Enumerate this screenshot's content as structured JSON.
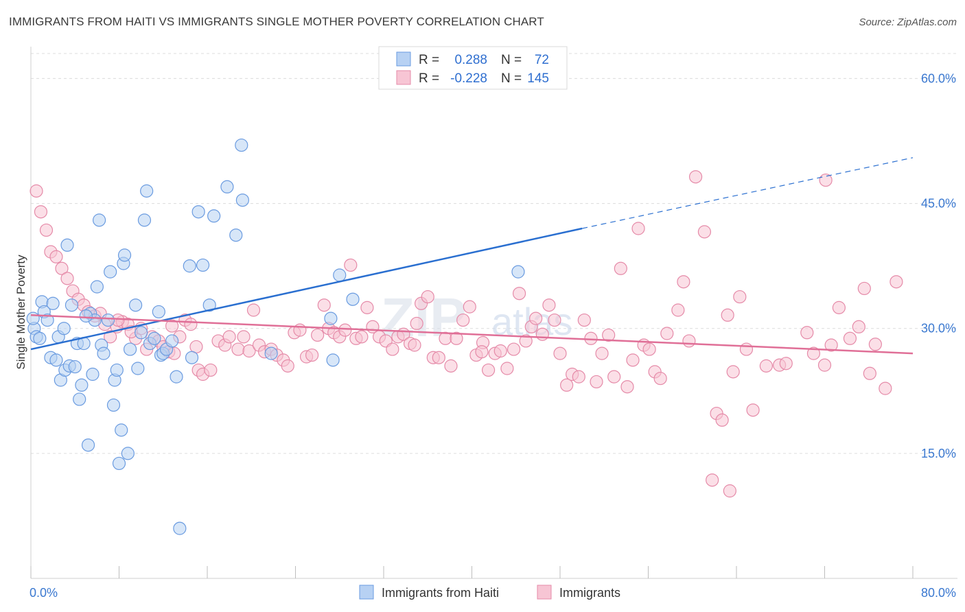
{
  "title": "IMMIGRANTS FROM HAITI VS IMMIGRANTS SINGLE MOTHER POVERTY CORRELATION CHART",
  "source": "Source: ZipAtlas.com",
  "watermark": {
    "zip": "ZIP",
    "atlas": "atlas"
  },
  "colors": {
    "blue_fill": "#b7d1f3",
    "blue_stroke": "#6a9be0",
    "blue_line": "#2a6fd0",
    "pink_fill": "#f7c5d4",
    "pink_stroke": "#e58aa8",
    "pink_line": "#e06f97",
    "grid": "#dcdcdc",
    "axis_text": "#3a78d0"
  },
  "legend": {
    "rows": [
      {
        "r_label": "R =",
        "r_value": "0.288",
        "n_label": "N =",
        "n_value": "72"
      },
      {
        "r_label": "R =",
        "r_value": "-0.228",
        "n_label": "N =",
        "n_value": "145"
      }
    ]
  },
  "chart_data": {
    "type": "scatter",
    "title": "IMMIGRANTS FROM HAITI VS IMMIGRANTS SINGLE MOTHER POVERTY CORRELATION CHART",
    "xlabel": "",
    "ylabel": "Single Mother Poverty",
    "xlim": [
      0,
      80
    ],
    "ylim": [
      0,
      63
    ],
    "x_ticks_labeled": [
      "0.0%",
      "80.0%"
    ],
    "x_tick_positions": [
      0,
      8,
      16,
      24,
      32,
      40,
      48,
      56,
      64,
      72,
      80
    ],
    "y_ticks": [
      15,
      30,
      45,
      60
    ],
    "y_tick_labels": [
      "15.0%",
      "30.0%",
      "45.0%",
      "60.0%"
    ],
    "grid": "horizontal dashed",
    "legend_placement": "top-center and bottom",
    "series": [
      {
        "name": "Immigrants from Haiti",
        "R": 0.288,
        "N": 72,
        "trend": {
          "x0": 0,
          "y0": 27.5,
          "x1": 50,
          "y1": 42.0,
          "dashed_to_x": 80,
          "dashed_to_y": 50.5
        },
        "points": [
          [
            0.3,
            30.0
          ],
          [
            0.5,
            29.0
          ],
          [
            0.8,
            28.8
          ],
          [
            1.0,
            33.2
          ],
          [
            1.2,
            32.0
          ],
          [
            1.5,
            31.0
          ],
          [
            1.8,
            26.5
          ],
          [
            2.0,
            33.0
          ],
          [
            2.3,
            26.2
          ],
          [
            2.5,
            29.0
          ],
          [
            2.7,
            23.8
          ],
          [
            3.0,
            30.0
          ],
          [
            3.1,
            25.0
          ],
          [
            3.3,
            40.0
          ],
          [
            3.5,
            25.5
          ],
          [
            3.7,
            32.8
          ],
          [
            4.0,
            25.4
          ],
          [
            4.2,
            28.2
          ],
          [
            4.4,
            21.5
          ],
          [
            4.6,
            23.2
          ],
          [
            4.8,
            28.2
          ],
          [
            5.2,
            16.0
          ],
          [
            5.4,
            31.8
          ],
          [
            5.6,
            24.5
          ],
          [
            5.8,
            31.0
          ],
          [
            6.0,
            35.0
          ],
          [
            6.2,
            43.0
          ],
          [
            6.4,
            28.0
          ],
          [
            6.6,
            27.0
          ],
          [
            7.0,
            31.0
          ],
          [
            7.2,
            36.8
          ],
          [
            7.5,
            20.8
          ],
          [
            7.6,
            23.8
          ],
          [
            7.8,
            25.0
          ],
          [
            8.0,
            13.8
          ],
          [
            8.2,
            17.8
          ],
          [
            8.4,
            37.8
          ],
          [
            8.5,
            38.8
          ],
          [
            8.8,
            15.0
          ],
          [
            9.0,
            27.5
          ],
          [
            9.5,
            32.8
          ],
          [
            9.7,
            25.2
          ],
          [
            10.0,
            29.5
          ],
          [
            10.3,
            43.0
          ],
          [
            10.5,
            46.5
          ],
          [
            10.8,
            28.2
          ],
          [
            11.2,
            28.8
          ],
          [
            11.6,
            32.0
          ],
          [
            11.8,
            26.8
          ],
          [
            12.0,
            27.0
          ],
          [
            12.3,
            27.5
          ],
          [
            12.8,
            28.5
          ],
          [
            13.2,
            24.2
          ],
          [
            13.5,
            6.0
          ],
          [
            14.4,
            37.5
          ],
          [
            14.6,
            26.5
          ],
          [
            15.2,
            44.0
          ],
          [
            15.6,
            37.6
          ],
          [
            16.2,
            32.8
          ],
          [
            16.6,
            43.5
          ],
          [
            17.8,
            47.0
          ],
          [
            18.6,
            41.2
          ],
          [
            19.1,
            52.0
          ],
          [
            19.2,
            45.4
          ],
          [
            21.8,
            27.0
          ],
          [
            27.2,
            31.2
          ],
          [
            27.4,
            26.2
          ],
          [
            28.0,
            36.4
          ],
          [
            29.2,
            33.5
          ],
          [
            44.2,
            36.8
          ],
          [
            0.2,
            31.2
          ],
          [
            5.0,
            31.5
          ]
        ]
      },
      {
        "name": "Immigrants",
        "R": -0.228,
        "N": 145,
        "trend": {
          "x0": 0,
          "y0": 31.6,
          "x1": 80,
          "y1": 27.0
        },
        "points": [
          [
            0.5,
            46.5
          ],
          [
            0.9,
            44.0
          ],
          [
            1.4,
            41.8
          ],
          [
            1.8,
            39.2
          ],
          [
            2.3,
            38.6
          ],
          [
            2.8,
            37.2
          ],
          [
            3.3,
            36.0
          ],
          [
            3.8,
            34.5
          ],
          [
            4.3,
            33.5
          ],
          [
            4.8,
            32.8
          ],
          [
            5.2,
            32.0
          ],
          [
            5.8,
            31.5
          ],
          [
            6.3,
            31.8
          ],
          [
            6.7,
            30.5
          ],
          [
            7.2,
            29.0
          ],
          [
            7.8,
            30.2
          ],
          [
            8.3,
            30.8
          ],
          [
            8.8,
            30.5
          ],
          [
            9.5,
            28.8
          ],
          [
            10.0,
            30.0
          ],
          [
            10.5,
            27.5
          ],
          [
            11.0,
            29.0
          ],
          [
            11.6,
            28.5
          ],
          [
            12.0,
            27.8
          ],
          [
            12.5,
            27.2
          ],
          [
            13.0,
            27.0
          ],
          [
            13.5,
            29.0
          ],
          [
            14.0,
            31.0
          ],
          [
            14.5,
            30.5
          ],
          [
            15.0,
            27.8
          ],
          [
            15.2,
            25.0
          ],
          [
            15.6,
            24.5
          ],
          [
            16.3,
            25.0
          ],
          [
            17.0,
            28.5
          ],
          [
            17.6,
            28.0
          ],
          [
            18.0,
            29.0
          ],
          [
            18.8,
            27.5
          ],
          [
            19.3,
            29.0
          ],
          [
            19.8,
            27.3
          ],
          [
            20.2,
            32.2
          ],
          [
            20.7,
            28.0
          ],
          [
            21.2,
            27.2
          ],
          [
            21.8,
            27.5
          ],
          [
            22.3,
            26.8
          ],
          [
            22.9,
            26.2
          ],
          [
            23.3,
            25.5
          ],
          [
            23.9,
            29.5
          ],
          [
            24.4,
            29.8
          ],
          [
            25.0,
            26.6
          ],
          [
            25.5,
            26.8
          ],
          [
            26.0,
            29.2
          ],
          [
            26.6,
            32.8
          ],
          [
            27.0,
            30.0
          ],
          [
            27.5,
            29.5
          ],
          [
            28.0,
            29.0
          ],
          [
            28.5,
            29.8
          ],
          [
            29.0,
            37.6
          ],
          [
            29.5,
            28.8
          ],
          [
            30.0,
            29.0
          ],
          [
            30.5,
            32.5
          ],
          [
            31.0,
            30.2
          ],
          [
            31.6,
            29.0
          ],
          [
            32.2,
            28.5
          ],
          [
            32.8,
            27.5
          ],
          [
            33.3,
            29.0
          ],
          [
            33.8,
            29.3
          ],
          [
            34.4,
            28.2
          ],
          [
            35.0,
            30.6
          ],
          [
            35.4,
            33.0
          ],
          [
            36.0,
            33.8
          ],
          [
            36.5,
            26.5
          ],
          [
            37.0,
            26.5
          ],
          [
            37.6,
            28.8
          ],
          [
            38.1,
            25.5
          ],
          [
            38.6,
            28.8
          ],
          [
            39.2,
            31.0
          ],
          [
            39.8,
            32.6
          ],
          [
            40.4,
            26.8
          ],
          [
            41.0,
            28.3
          ],
          [
            41.5,
            25.0
          ],
          [
            42.1,
            27.0
          ],
          [
            42.6,
            27.3
          ],
          [
            43.2,
            25.2
          ],
          [
            43.8,
            27.5
          ],
          [
            44.3,
            34.2
          ],
          [
            44.9,
            28.5
          ],
          [
            45.4,
            30.2
          ],
          [
            45.8,
            31.2
          ],
          [
            46.4,
            29.3
          ],
          [
            47.0,
            32.8
          ],
          [
            47.5,
            31.0
          ],
          [
            48.0,
            27.0
          ],
          [
            48.6,
            23.2
          ],
          [
            49.1,
            24.5
          ],
          [
            49.7,
            24.2
          ],
          [
            50.2,
            31.0
          ],
          [
            50.8,
            28.8
          ],
          [
            51.3,
            23.6
          ],
          [
            51.8,
            27.0
          ],
          [
            52.4,
            29.2
          ],
          [
            52.9,
            24.2
          ],
          [
            53.5,
            37.2
          ],
          [
            54.1,
            23.0
          ],
          [
            54.6,
            26.2
          ],
          [
            55.1,
            42.0
          ],
          [
            55.6,
            28.0
          ],
          [
            56.1,
            27.5
          ],
          [
            56.6,
            24.8
          ],
          [
            57.1,
            24.0
          ],
          [
            57.7,
            29.4
          ],
          [
            58.7,
            32.2
          ],
          [
            59.2,
            35.6
          ],
          [
            59.7,
            28.5
          ],
          [
            60.3,
            48.2
          ],
          [
            61.1,
            41.6
          ],
          [
            62.2,
            19.8
          ],
          [
            62.7,
            19.0
          ],
          [
            63.2,
            31.6
          ],
          [
            63.7,
            24.8
          ],
          [
            64.3,
            33.8
          ],
          [
            64.9,
            27.5
          ],
          [
            65.5,
            20.2
          ],
          [
            66.7,
            25.5
          ],
          [
            67.9,
            25.6
          ],
          [
            68.5,
            25.8
          ],
          [
            70.4,
            29.5
          ],
          [
            71.0,
            27.0
          ],
          [
            72.0,
            25.6
          ],
          [
            72.6,
            28.0
          ],
          [
            73.3,
            32.5
          ],
          [
            74.3,
            28.8
          ],
          [
            75.1,
            30.2
          ],
          [
            75.6,
            34.8
          ],
          [
            76.1,
            24.6
          ],
          [
            76.6,
            28.1
          ],
          [
            77.5,
            22.8
          ],
          [
            78.5,
            35.6
          ],
          [
            61.8,
            11.8
          ],
          [
            63.4,
            10.5
          ],
          [
            72.1,
            47.8
          ],
          [
            7.9,
            31.0
          ],
          [
            9.1,
            29.6
          ],
          [
            12.8,
            30.3
          ],
          [
            34.8,
            28.0
          ],
          [
            40.9,
            27.2
          ]
        ]
      }
    ]
  },
  "bottom_legend": [
    {
      "label": "Immigrants from Haiti"
    },
    {
      "label": "Immigrants"
    }
  ]
}
